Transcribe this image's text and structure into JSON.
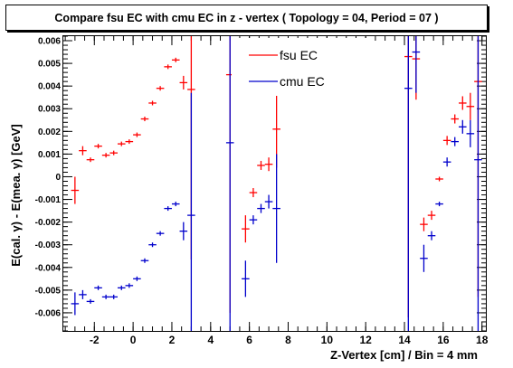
{
  "chart_data": {
    "type": "scatter",
    "title": "Compare fsu EC with cmu EC in z - vertex ( Topology = 04, Period = 07 )",
    "xlabel": "Z-Vertex [cm] / Bin = 4 mm",
    "ylabel": "E(cal. γ) - E(mea. γ) [GeV]",
    "xlim": [
      -3.6,
      18.2
    ],
    "ylim": [
      -0.0068,
      0.0062
    ],
    "x_ticks": [
      -2,
      0,
      2,
      4,
      6,
      8,
      10,
      12,
      14,
      16,
      18
    ],
    "y_ticks": [
      -0.006,
      -0.005,
      -0.004,
      -0.003,
      -0.002,
      -0.001,
      0,
      0.001,
      0.002,
      0.003,
      0.004,
      0.005,
      0.006
    ],
    "x_tick_labels": [
      "-2",
      "0",
      "2",
      "4",
      "6",
      "8",
      "10",
      "12",
      "14",
      "16",
      "18"
    ],
    "y_tick_labels": [
      "-0.006",
      "-0.005",
      "-0.004",
      "-0.003",
      "-0.002",
      "-0.001",
      "0",
      "0.001",
      "0.002",
      "0.003",
      "0.004",
      "0.005",
      "0.006"
    ],
    "legend_position": "top-center",
    "series": [
      {
        "name": "fsu EC",
        "color": "#ff0000",
        "x": [
          -3.0,
          -2.6,
          -2.2,
          -1.8,
          -1.4,
          -1.0,
          -0.6,
          -0.2,
          0.2,
          0.6,
          1.0,
          1.4,
          1.8,
          2.2,
          2.6,
          3.0,
          5.0,
          5.8,
          6.2,
          6.6,
          7.0,
          7.4,
          14.2,
          14.6,
          15.0,
          15.4,
          15.8,
          16.2,
          16.6,
          17.0,
          17.4,
          17.8
        ],
        "y": [
          -0.0006,
          0.00115,
          0.00075,
          0.00135,
          0.00095,
          0.00105,
          0.00145,
          0.00155,
          0.00185,
          0.00255,
          0.00325,
          0.0039,
          0.00485,
          0.00515,
          0.00415,
          0.00385,
          0.0045,
          -0.0023,
          -0.0007,
          0.0005,
          0.00055,
          0.0021,
          0.0053,
          0.0052,
          -0.0021,
          -0.0017,
          -0.0001,
          0.0016,
          0.00255,
          0.00325,
          0.0031,
          0.0042
        ],
        "yerr": [
          0.0006,
          0.0002,
          0.0001,
          0.0001,
          0.0001,
          0.0001,
          0.0001,
          0.0001,
          0.0001,
          0.0001,
          0.0001,
          0.0001,
          0.0001,
          0.0001,
          0.0003,
          0.0075,
          0.0105,
          0.0006,
          0.0002,
          0.0002,
          0.0003,
          0.0017,
          0.0115,
          0.0018,
          0.0003,
          0.0002,
          0.0001,
          0.0002,
          0.0002,
          0.0003,
          0.0006,
          0.0095
        ]
      },
      {
        "name": "cmu EC",
        "color": "#0000cc",
        "x": [
          -3.0,
          -2.6,
          -2.2,
          -1.8,
          -1.4,
          -1.0,
          -0.6,
          -0.2,
          0.2,
          0.6,
          1.0,
          1.4,
          1.8,
          2.2,
          2.6,
          3.0,
          5.0,
          5.8,
          6.2,
          6.6,
          7.0,
          7.4,
          14.2,
          14.6,
          15.0,
          15.4,
          15.8,
          16.2,
          16.6,
          17.0,
          17.4,
          17.8
        ],
        "y": [
          -0.0056,
          -0.0052,
          -0.0055,
          -0.0049,
          -0.0053,
          -0.0053,
          -0.0049,
          -0.0048,
          -0.0045,
          -0.0037,
          -0.003,
          -0.0025,
          -0.0014,
          -0.0012,
          -0.0024,
          -0.0017,
          0.0015,
          -0.0045,
          -0.0019,
          -0.0014,
          -0.0011,
          -0.0014,
          0.0039,
          0.0055,
          -0.0036,
          -0.0026,
          -0.0012,
          0.00065,
          0.00155,
          0.0022,
          0.0019,
          0.00075
        ],
        "yerr": [
          0.0005,
          0.0002,
          0.0001,
          0.0001,
          0.0001,
          0.0001,
          0.0001,
          0.0001,
          0.0001,
          0.0001,
          0.0001,
          0.0001,
          0.0001,
          0.0001,
          0.0004,
          0.0054,
          0.0105,
          0.0008,
          0.0002,
          0.0002,
          0.0003,
          0.0024,
          0.0115,
          0.0018,
          0.0006,
          0.0002,
          0.0001,
          0.0002,
          0.0002,
          0.0003,
          0.0006,
          0.0095
        ]
      }
    ]
  }
}
